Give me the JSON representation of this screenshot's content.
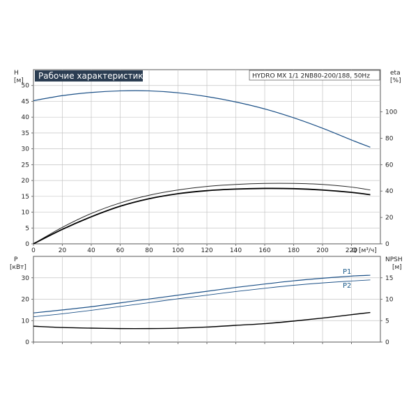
{
  "chart_data": [
    {
      "type": "line",
      "title": "Рабочие характеристики",
      "model": "HYDRO MX 1/1 2NB80-200/188, 50Hz",
      "xlabel": "Q [м³/ч]",
      "ylabel_left": [
        "H",
        "[м]"
      ],
      "ylabel_right": [
        "eta",
        "[%]"
      ],
      "xlim": [
        0,
        240
      ],
      "ylim_left": [
        0,
        55
      ],
      "ylim_right": [
        0,
        132
      ],
      "x_ticks": [
        0,
        20,
        40,
        60,
        80,
        100,
        120,
        140,
        160,
        180,
        200,
        220
      ],
      "y_ticks_left": [
        0,
        5,
        10,
        15,
        20,
        25,
        30,
        35,
        40,
        45,
        50
      ],
      "y_ticks_right": [
        0,
        20,
        40,
        60,
        80,
        100
      ],
      "grid": true,
      "series": [
        {
          "axis": "left",
          "color": "#1a4f86",
          "width": 1.2,
          "x": [
            0,
            20,
            40,
            60,
            80,
            100,
            120,
            140,
            160,
            180,
            200,
            220,
            233
          ],
          "y": [
            45.2,
            46.8,
            47.8,
            48.3,
            48.3,
            47.7,
            46.5,
            44.8,
            42.6,
            39.8,
            36.5,
            32.8,
            30.5
          ]
        },
        {
          "axis": "right",
          "color": "#222222",
          "width": 1.0,
          "x": [
            0,
            20,
            40,
            60,
            80,
            100,
            120,
            140,
            160,
            180,
            200,
            220,
            233
          ],
          "y": [
            0,
            12.5,
            23,
            31,
            36.8,
            40.8,
            43.5,
            45,
            45.8,
            45.8,
            45,
            43,
            40.8
          ]
        },
        {
          "axis": "right",
          "color": "#000000",
          "width": 1.8,
          "x": [
            0,
            20,
            40,
            60,
            80,
            100,
            120,
            140,
            160,
            180,
            200,
            220,
            233
          ],
          "y": [
            0,
            11,
            20.5,
            28.5,
            34.2,
            38,
            40.3,
            41.5,
            42,
            41.8,
            40.8,
            39,
            37.2
          ]
        }
      ]
    },
    {
      "type": "line",
      "xlabel": "",
      "ylabel_left": [
        "P",
        "[кВт]"
      ],
      "ylabel_right": [
        "NPSH",
        "[м]"
      ],
      "xlim": [
        0,
        240
      ],
      "ylim_left": [
        0,
        40
      ],
      "ylim_right": [
        0,
        20
      ],
      "y_ticks_left": [
        0,
        10,
        20,
        30
      ],
      "y_ticks_right": [
        0,
        5,
        10,
        15
      ],
      "grid": true,
      "series": [
        {
          "name": "P1",
          "axis": "left",
          "color": "#1a4f86",
          "width": 1.2,
          "x": [
            0,
            20,
            40,
            60,
            80,
            100,
            120,
            140,
            160,
            180,
            200,
            220,
            233
          ],
          "y": [
            13.6,
            15,
            16.5,
            18.3,
            20.1,
            21.9,
            23.7,
            25.5,
            27.1,
            28.6,
            29.8,
            30.8,
            31.2
          ]
        },
        {
          "name": "P2",
          "axis": "left",
          "color": "#1a4f86",
          "width": 0.9,
          "x": [
            0,
            20,
            40,
            60,
            80,
            100,
            120,
            140,
            160,
            180,
            200,
            220,
            233
          ],
          "y": [
            11.8,
            13.2,
            14.8,
            16.6,
            18.4,
            20.2,
            21.9,
            23.6,
            25.1,
            26.5,
            27.6,
            28.5,
            29
          ]
        },
        {
          "axis": "right",
          "color": "#000000",
          "width": 1.4,
          "x": [
            0,
            20,
            40,
            60,
            80,
            100,
            120,
            140,
            160,
            180,
            200,
            220,
            233
          ],
          "y": [
            3.7,
            3.4,
            3.25,
            3.15,
            3.15,
            3.25,
            3.5,
            3.9,
            4.3,
            4.9,
            5.6,
            6.4,
            6.9
          ]
        }
      ]
    }
  ]
}
